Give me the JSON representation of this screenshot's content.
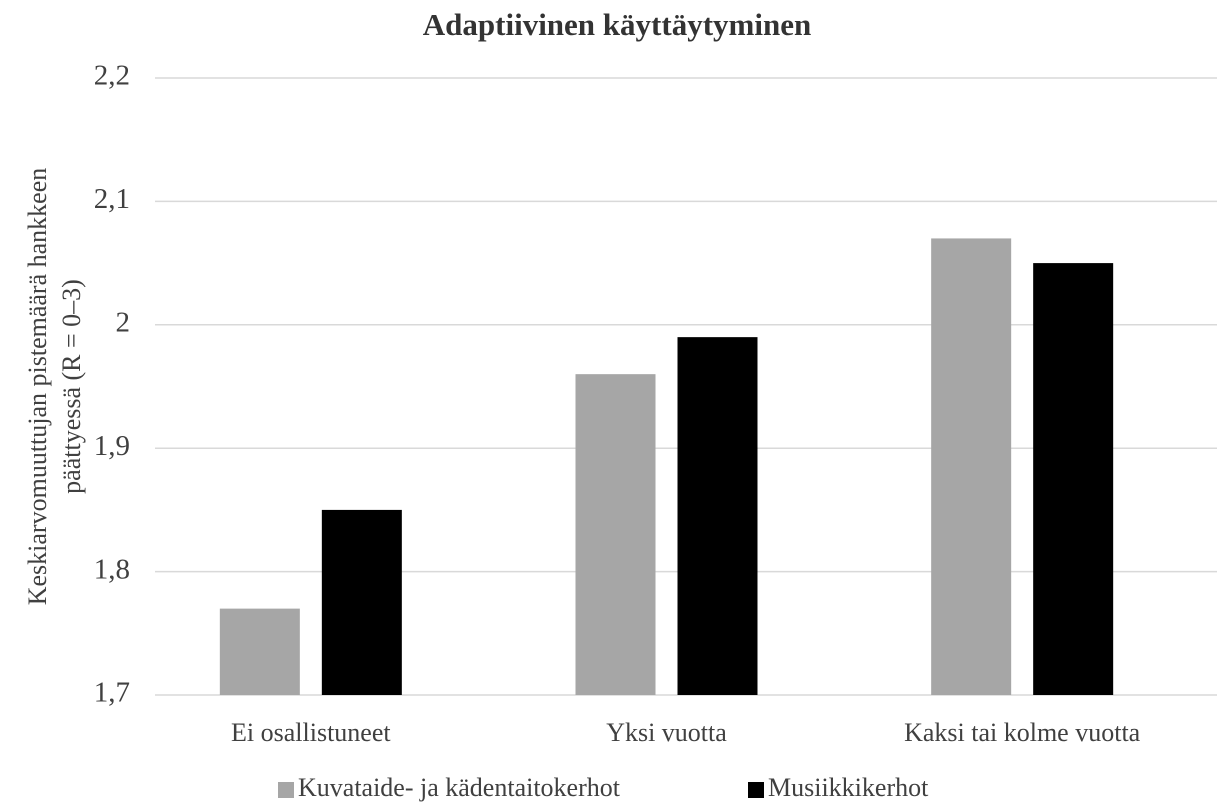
{
  "chart_data": {
    "type": "bar",
    "title": "Adaptiivinen käyttäytyminen",
    "ylabel": [
      "Keskiarvomuuttujan pistemäärä hankkeen",
      "päättyessä (R = 0–3)"
    ],
    "categories": [
      "Ei osallistuneet",
      "Yksi vuotta",
      "Kaksi tai kolme vuotta"
    ],
    "series": [
      {
        "name": "Kuvataide- ja kädentaitokerhot",
        "color": "#a6a6a6",
        "values": [
          1.77,
          1.96,
          2.07
        ]
      },
      {
        "name": "Musiikkikerhot",
        "color": "#000000",
        "values": [
          1.85,
          1.99,
          2.05
        ]
      }
    ],
    "ylim": [
      1.7,
      2.2
    ],
    "yticks": [
      {
        "value": 1.7,
        "label": "1,7"
      },
      {
        "value": 1.8,
        "label": "1,8"
      },
      {
        "value": 1.9,
        "label": "1,9"
      },
      2,
      {
        "value": 2.1,
        "label": "2,1"
      },
      {
        "value": 2.2,
        "label": "2,2"
      }
    ],
    "grid": true,
    "legend": "bottom"
  }
}
